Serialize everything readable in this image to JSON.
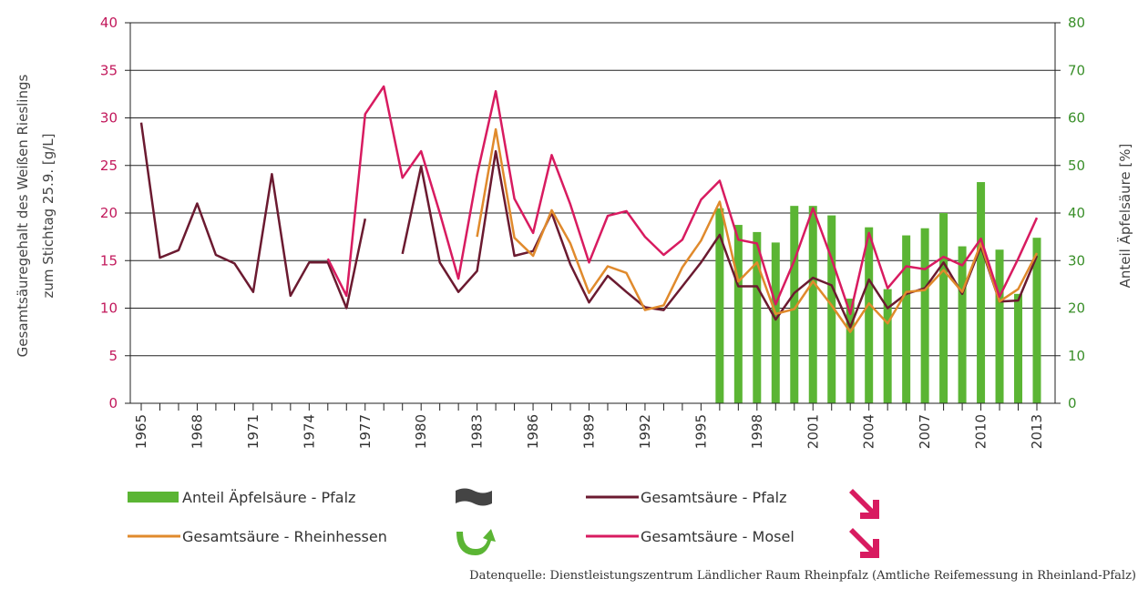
{
  "chart_data": {
    "type": "combo",
    "y_label": [
      "Gesamtsäuregehalt des Weißen Rieslings",
      "zum Stichtag 25.9. [g/L]"
    ],
    "y2_label": "Anteil Äpfelsäure [%]",
    "source": "Datenquelle: Dienstleistungszentrum Ländlicher Raum Rheinpfalz (Amtliche Reifemessung in Rheinland-Pfalz)",
    "categories": [
      "1965",
      null,
      null,
      "1968",
      null,
      null,
      "1971",
      null,
      null,
      "1974",
      null,
      null,
      "1977",
      null,
      null,
      "1980",
      null,
      null,
      "1983",
      null,
      null,
      "1986",
      null,
      null,
      "1989",
      null,
      null,
      "1992",
      null,
      null,
      "1995",
      null,
      null,
      "1998",
      null,
      null,
      "2001",
      null,
      null,
      "2004",
      null,
      null,
      "2007",
      null,
      null,
      "2010",
      null,
      null,
      "2013"
    ],
    "ylim": [
      0,
      40
    ],
    "yticks": [
      0,
      5,
      10,
      15,
      20,
      25,
      30,
      35,
      40
    ],
    "y2lim": [
      0,
      80
    ],
    "y2ticks": [
      0,
      10,
      20,
      30,
      40,
      50,
      60,
      70,
      80
    ],
    "grid": true,
    "series": [
      {
        "name": "Anteil Äpfelsäure - Pfalz",
        "type": "bar",
        "axis": "y2",
        "color": "#5bb534",
        "values": [
          null,
          null,
          null,
          null,
          null,
          null,
          null,
          null,
          null,
          null,
          null,
          null,
          null,
          null,
          null,
          null,
          null,
          null,
          null,
          null,
          null,
          null,
          null,
          null,
          null,
          null,
          null,
          null,
          null,
          null,
          null,
          41,
          37.5,
          36,
          33.8,
          41.5,
          41.5,
          39.5,
          22,
          37,
          24,
          35.3,
          36.8,
          40,
          33,
          46.5,
          32.3,
          23,
          34.8
        ]
      },
      {
        "name": "Gesamtsäure - Pfalz",
        "type": "line",
        "color": "#6b1a30",
        "values": [
          29.5,
          15.3,
          16.1,
          21.0,
          15.6,
          14.7,
          11.7,
          24.1,
          11.3,
          14.8,
          14.8,
          10.0,
          19.4,
          null,
          15.7,
          24.9,
          14.8,
          11.7,
          13.9,
          26.5,
          15.5,
          16.0,
          20.0,
          14.6,
          10.6,
          13.4,
          11.7,
          10.1,
          9.8,
          12.3,
          14.8,
          17.7,
          12.3,
          12.3,
          8.8,
          11.6,
          13.2,
          12.4,
          8.0,
          13.0,
          10.0,
          11.5,
          12.1,
          14.8,
          11.5,
          16.5,
          10.7,
          10.8,
          15.5
        ]
      },
      {
        "name": "Gesamtsäure - Rheinhessen",
        "type": "line",
        "color": "#e08a2c",
        "values": [
          null,
          null,
          null,
          null,
          null,
          null,
          null,
          null,
          null,
          null,
          null,
          null,
          null,
          null,
          null,
          null,
          null,
          null,
          17.5,
          28.8,
          17.4,
          15.5,
          20.3,
          16.8,
          11.6,
          14.4,
          13.7,
          9.8,
          10.3,
          14.3,
          17.1,
          21.2,
          12.8,
          14.8,
          9.4,
          9.9,
          12.8,
          10.3,
          7.5,
          10.5,
          8.4,
          11.7,
          11.9,
          14.0,
          11.7,
          16.8,
          10.7,
          12.0,
          15.8
        ]
      },
      {
        "name": "Gesamtsäure - Mosel",
        "type": "line",
        "color": "#d81b60",
        "values": [
          null,
          null,
          null,
          null,
          null,
          null,
          null,
          null,
          null,
          null,
          15.2,
          11.3,
          30.4,
          33.3,
          23.7,
          26.5,
          20.0,
          13.1,
          24.0,
          32.8,
          21.5,
          17.9,
          26.1,
          20.9,
          14.8,
          19.7,
          20.2,
          17.5,
          15.6,
          17.2,
          21.4,
          23.4,
          17.2,
          16.8,
          10.4,
          15.0,
          20.5,
          15.2,
          9.4,
          17.9,
          12.1,
          14.4,
          14.1,
          15.4,
          14.5,
          17.3,
          11.2,
          15.2,
          19.5
        ]
      }
    ]
  }
}
